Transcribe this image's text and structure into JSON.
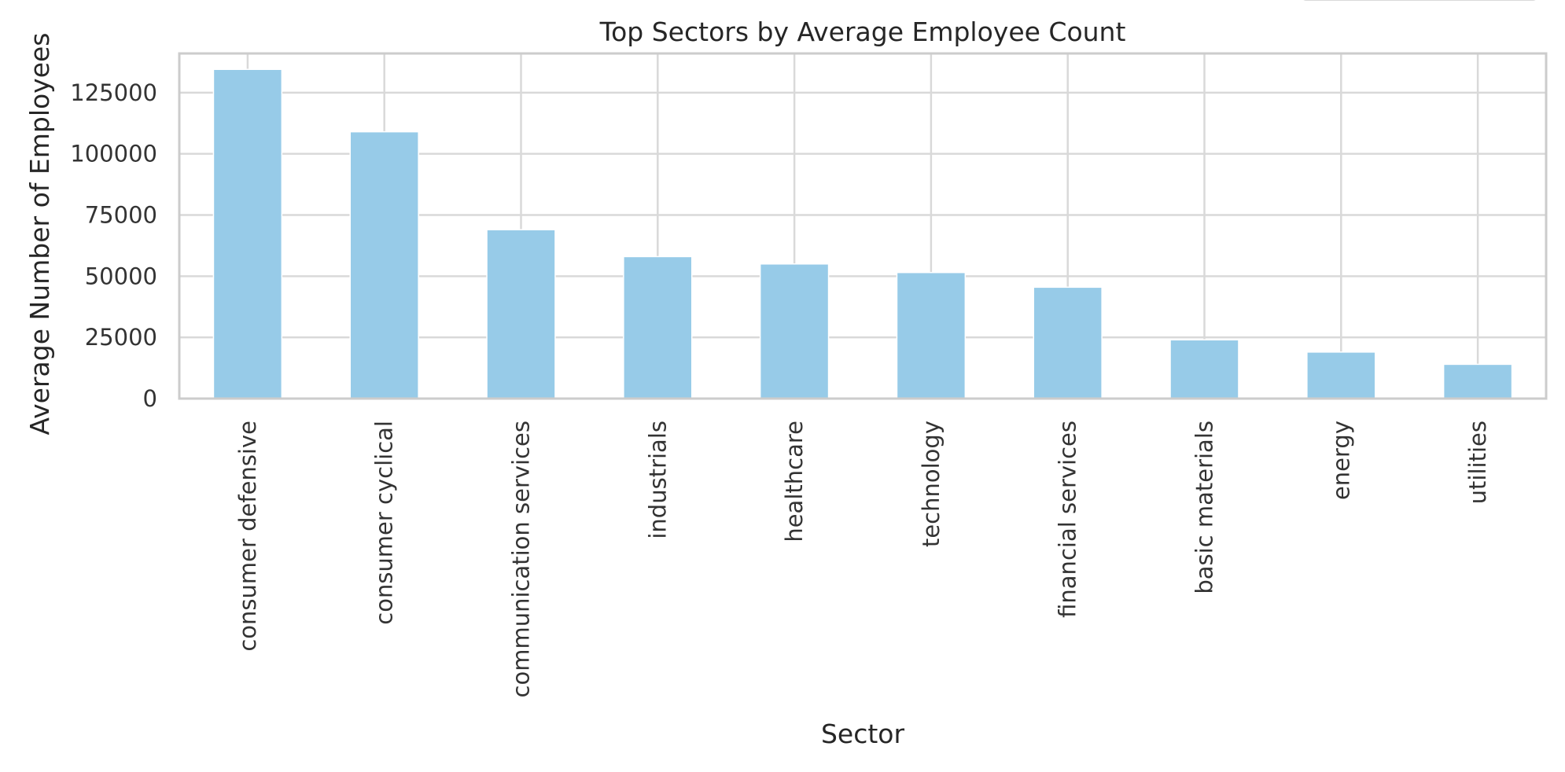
{
  "chart_data": {
    "type": "bar",
    "title": "Top Sectors by Average Employee Count",
    "xlabel": "Sector",
    "ylabel": "Average Number of Employees",
    "categories": [
      "consumer defensive",
      "consumer cyclical",
      "communication services",
      "industrials",
      "healthcare",
      "technology",
      "financial services",
      "basic materials",
      "energy",
      "utilities"
    ],
    "values": [
      134500,
      109000,
      69000,
      58000,
      55000,
      51500,
      45500,
      24000,
      19000,
      14000
    ],
    "ylim": [
      0,
      141000
    ],
    "yticks": [
      0,
      25000,
      50000,
      75000,
      100000,
      125000
    ],
    "grid": true,
    "bar_color": "#97cbe8",
    "grid_color": "#d9d9d9"
  }
}
